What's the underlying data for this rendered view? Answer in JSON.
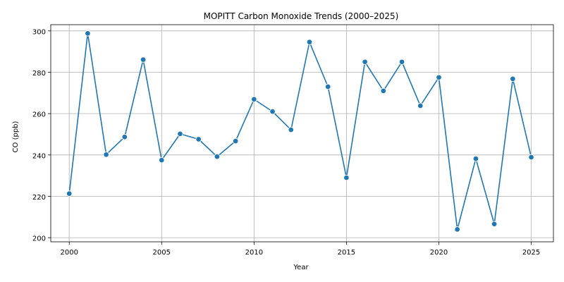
{
  "chart_data": {
    "type": "line",
    "title": "MOPITT Carbon Monoxide Trends (2000–2025)",
    "xlabel": "Year",
    "ylabel": "CO (ppb)",
    "xlim": [
      1999,
      2026.2
    ],
    "ylim": [
      198,
      303
    ],
    "xticks": [
      2000,
      2005,
      2010,
      2015,
      2020,
      2025
    ],
    "yticks": [
      200,
      220,
      240,
      260,
      280,
      300
    ],
    "grid": true,
    "legend": "none",
    "color": "#1f77b4",
    "series": [
      {
        "x": [
          2000,
          2001,
          2002,
          2003,
          2004,
          2005,
          2006,
          2007,
          2008,
          2009,
          2010,
          2011,
          2012,
          2013,
          2014,
          2015,
          2016,
          2017,
          2018,
          2019,
          2020,
          2021,
          2022,
          2023,
          2024,
          2025
        ],
        "values": [
          221.3,
          298.8,
          240.2,
          248.7,
          286.1,
          237.5,
          250.2,
          247.6,
          239.2,
          246.7,
          266.9,
          261.0,
          252.2,
          294.6,
          273.0,
          229.0,
          285.0,
          271.0,
          285.0,
          263.8,
          277.5,
          204.0,
          238.2,
          206.6,
          276.8,
          238.9
        ]
      }
    ]
  }
}
